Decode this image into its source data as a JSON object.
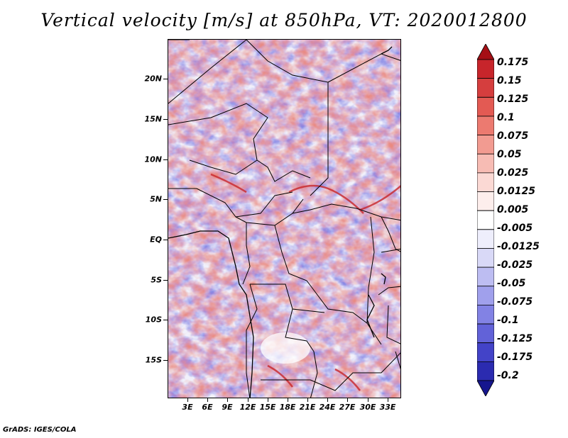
{
  "title": "Vertical velocity [m/s] at 850hPa, VT: 2020012800",
  "credit": "GrADS: IGES/COLA",
  "lat_labels": [
    "20N",
    "15N",
    "10N",
    "5N",
    "EQ",
    "5S",
    "10S",
    "15S"
  ],
  "lon_labels": [
    "3E",
    "6E",
    "9E",
    "12E",
    "15E",
    "18E",
    "21E",
    "24E",
    "27E",
    "30E",
    "33E"
  ],
  "colorbar": {
    "labels": [
      "0.175",
      "0.15",
      "0.125",
      "0.1",
      "0.075",
      "0.05",
      "0.025",
      "0.0125",
      "0.005",
      "-0.005",
      "-0.0125",
      "-0.025",
      "-0.05",
      "-0.075",
      "-0.1",
      "-0.125",
      "-0.175",
      "-0.2"
    ],
    "colors": [
      "#a50f15",
      "#c7252b",
      "#d53e3e",
      "#e35a53",
      "#ec7a70",
      "#f29b91",
      "#f7bcb4",
      "#fbd9d4",
      "#fdeeec",
      "#ffffff",
      "#eeeefc",
      "#d9d9f7",
      "#bdbdf2",
      "#a0a0ec",
      "#8282e4",
      "#6262d8",
      "#4343c8",
      "#2b2bb0",
      "#16168e"
    ]
  }
}
